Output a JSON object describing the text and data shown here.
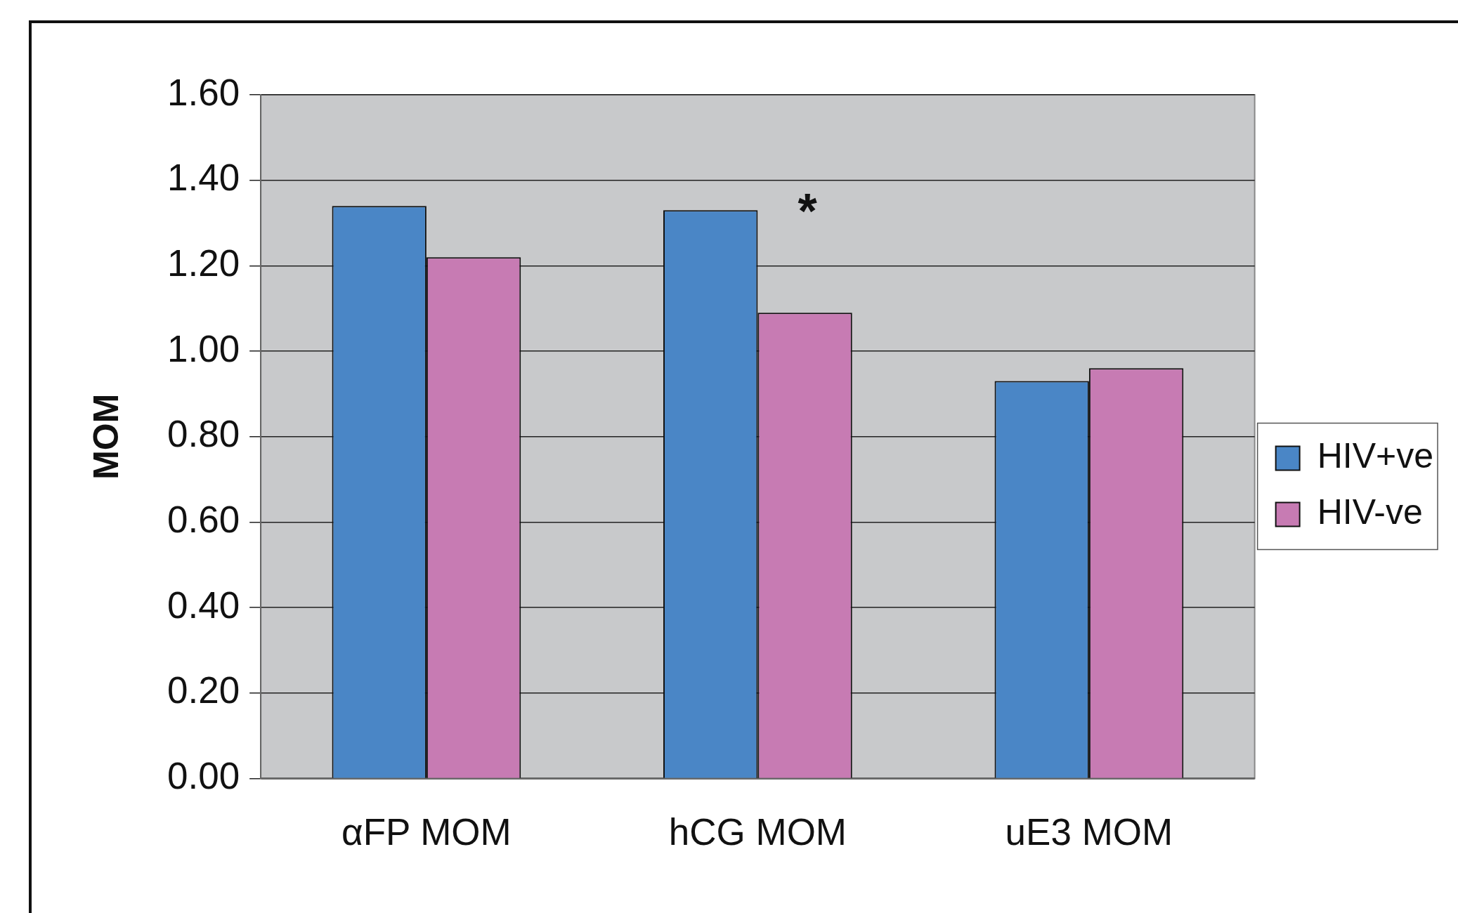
{
  "chart_data": {
    "type": "bar",
    "ylabel": "MOM",
    "categories": [
      "αFP MOM",
      "hCG MOM",
      "uE3 MOM"
    ],
    "series": [
      {
        "name": "HIV+ve",
        "color": "#4a86c6",
        "values": [
          1.34,
          1.33,
          0.93
        ]
      },
      {
        "name": "HIV-ve",
        "color": "#c77bb3",
        "values": [
          1.22,
          1.09,
          0.96
        ]
      }
    ],
    "ylim": [
      0,
      1.6
    ],
    "yticks": [
      {
        "value": 0,
        "label": "0.00"
      },
      {
        "value": 0.2,
        "label": "0.20"
      },
      {
        "value": 0.4,
        "label": "0.40"
      },
      {
        "value": 0.6,
        "label": "0.60"
      },
      {
        "value": 0.8,
        "label": "0.80"
      },
      {
        "value": 1,
        "label": "1.00"
      },
      {
        "value": 1.2,
        "label": "1.20"
      },
      {
        "value": 1.4,
        "label": "1.40"
      },
      {
        "value": 1.6,
        "label": "1.60"
      }
    ],
    "grid": "y",
    "legend": "right",
    "annotations": [
      "*"
    ]
  }
}
